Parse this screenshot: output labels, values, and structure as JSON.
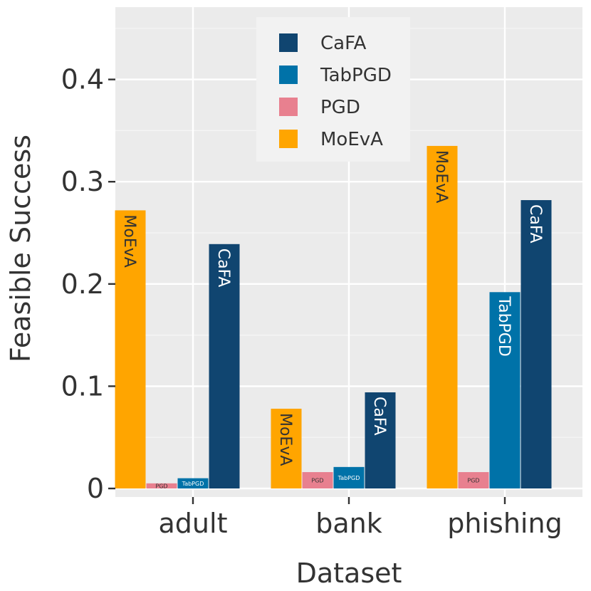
{
  "chart_data": {
    "type": "bar",
    "title": "",
    "xlabel": "Dataset",
    "ylabel": "Feasible Success",
    "categories": [
      "adult",
      "bank",
      "phishing"
    ],
    "ylim": [
      0,
      0.47
    ],
    "yticks": [
      0,
      0.1,
      0.2,
      0.3,
      0.4
    ],
    "ytick_labels": [
      "0",
      "0.1",
      "0.2",
      "0.3",
      "0.4"
    ],
    "legend_position": "top-center",
    "legend_order": [
      "CaFA",
      "TabPGD",
      "PGD",
      "MoEvA"
    ],
    "series": [
      {
        "name": "MoEvA",
        "color": "#FFA500",
        "label_color": "#333333",
        "values": [
          0.272,
          0.078,
          0.335
        ]
      },
      {
        "name": "PGD",
        "color": "#E8808F",
        "label_color": "#333333",
        "values": [
          0.005,
          0.016,
          0.016
        ]
      },
      {
        "name": "TabPGD",
        "color": "#0072A8",
        "label_color": "#ffffff",
        "values": [
          0.01,
          0.021,
          0.192
        ]
      },
      {
        "name": "CaFA",
        "color": "#104570",
        "label_color": "#ffffff",
        "values": [
          0.239,
          0.094,
          0.282
        ]
      }
    ]
  }
}
